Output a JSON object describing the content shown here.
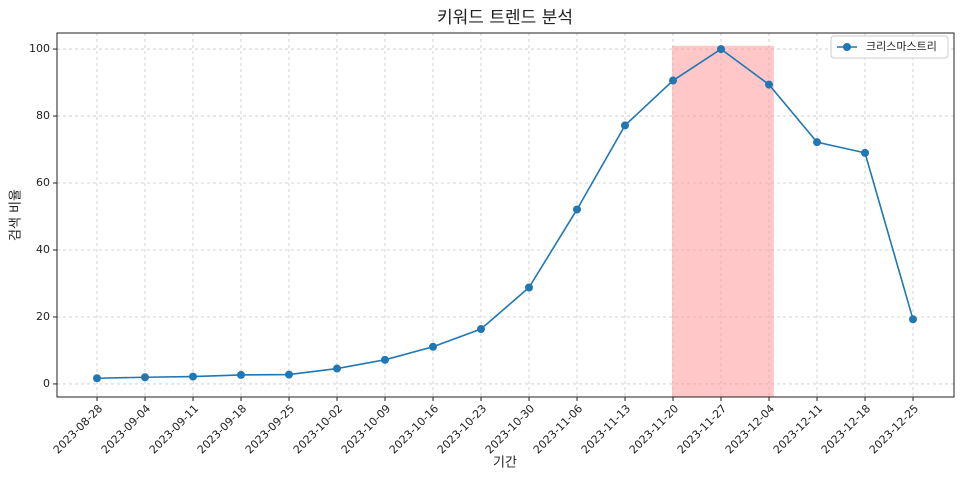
{
  "chart_data": {
    "type": "line",
    "title": "키워드 트렌드 분석",
    "x_label": "기간",
    "y_label": "검색 비율",
    "categories": [
      "2023-08-28",
      "2023-09-04",
      "2023-09-11",
      "2023-09-18",
      "2023-09-25",
      "2023-10-02",
      "2023-10-09",
      "2023-10-16",
      "2023-10-23",
      "2023-10-30",
      "2023-11-06",
      "2023-11-13",
      "2023-11-20",
      "2023-11-27",
      "2023-12-04",
      "2023-12-11",
      "2023-12-18",
      "2023-12-25"
    ],
    "series": [
      {
        "name": "크리스마스트리",
        "color": "#1f77b4",
        "values": [
          1.7,
          2.0,
          2.2,
          2.7,
          2.8,
          4.6,
          7.2,
          11.1,
          16.4,
          28.8,
          52.1,
          77.2,
          90.6,
          100,
          89.4,
          72.2,
          69.0,
          19.3
        ]
      }
    ],
    "ylim": [
      -3.9,
      104.8
    ],
    "yticks": [
      0,
      20,
      40,
      60,
      80,
      100
    ],
    "grid": true,
    "legend": "upper right",
    "highlight": {
      "start": "2023-11-20",
      "end": "2023-12-04",
      "color": "#ff9999"
    }
  }
}
